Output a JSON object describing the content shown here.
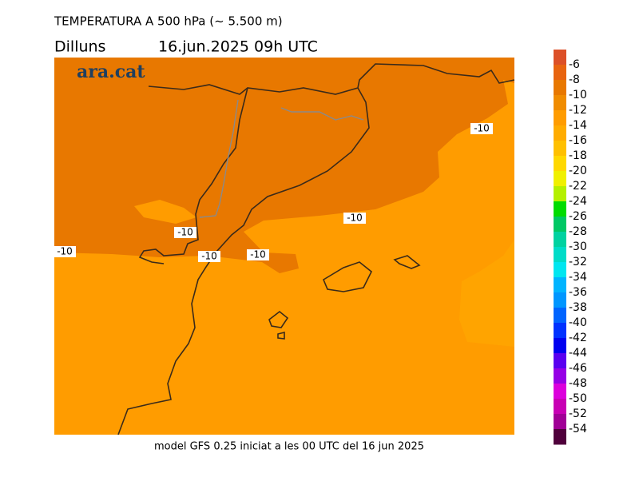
{
  "title": "TEMPERATURA A 500 hPa (~ 5.500 m)",
  "day": "Dilluns",
  "date": "16.jun.2025 09h UTC",
  "logo": "ara.cat",
  "footer": "model GFS 0.25 iniciat a les 00 UTC del 16 jun 2025",
  "contour_labels": [
    -10,
    -10,
    -10,
    -10,
    -10,
    -10
  ],
  "legend": {
    "ticks": [
      -6,
      -8,
      -10,
      -12,
      -14,
      -16,
      -18,
      -20,
      -22,
      -24,
      -26,
      -28,
      -30,
      -32,
      -34,
      -36,
      -38,
      -40,
      -42,
      -44,
      -46,
      -48,
      -50,
      -52,
      -54
    ],
    "colors": [
      "#dc5028",
      "#e86410",
      "#e87800",
      "#f08c00",
      "#ff9c00",
      "#ffac00",
      "#ffc000",
      "#ffd800",
      "#f0f000",
      "#b4f000",
      "#00dc00",
      "#00c864",
      "#00d2a0",
      "#00dcc8",
      "#00e6f0",
      "#00b4ff",
      "#0096ff",
      "#0064ff",
      "#0032ff",
      "#0000f0",
      "#5a00f0",
      "#9600e6",
      "#dc00dc",
      "#c800b4",
      "#a00096",
      "#50003c"
    ]
  }
}
